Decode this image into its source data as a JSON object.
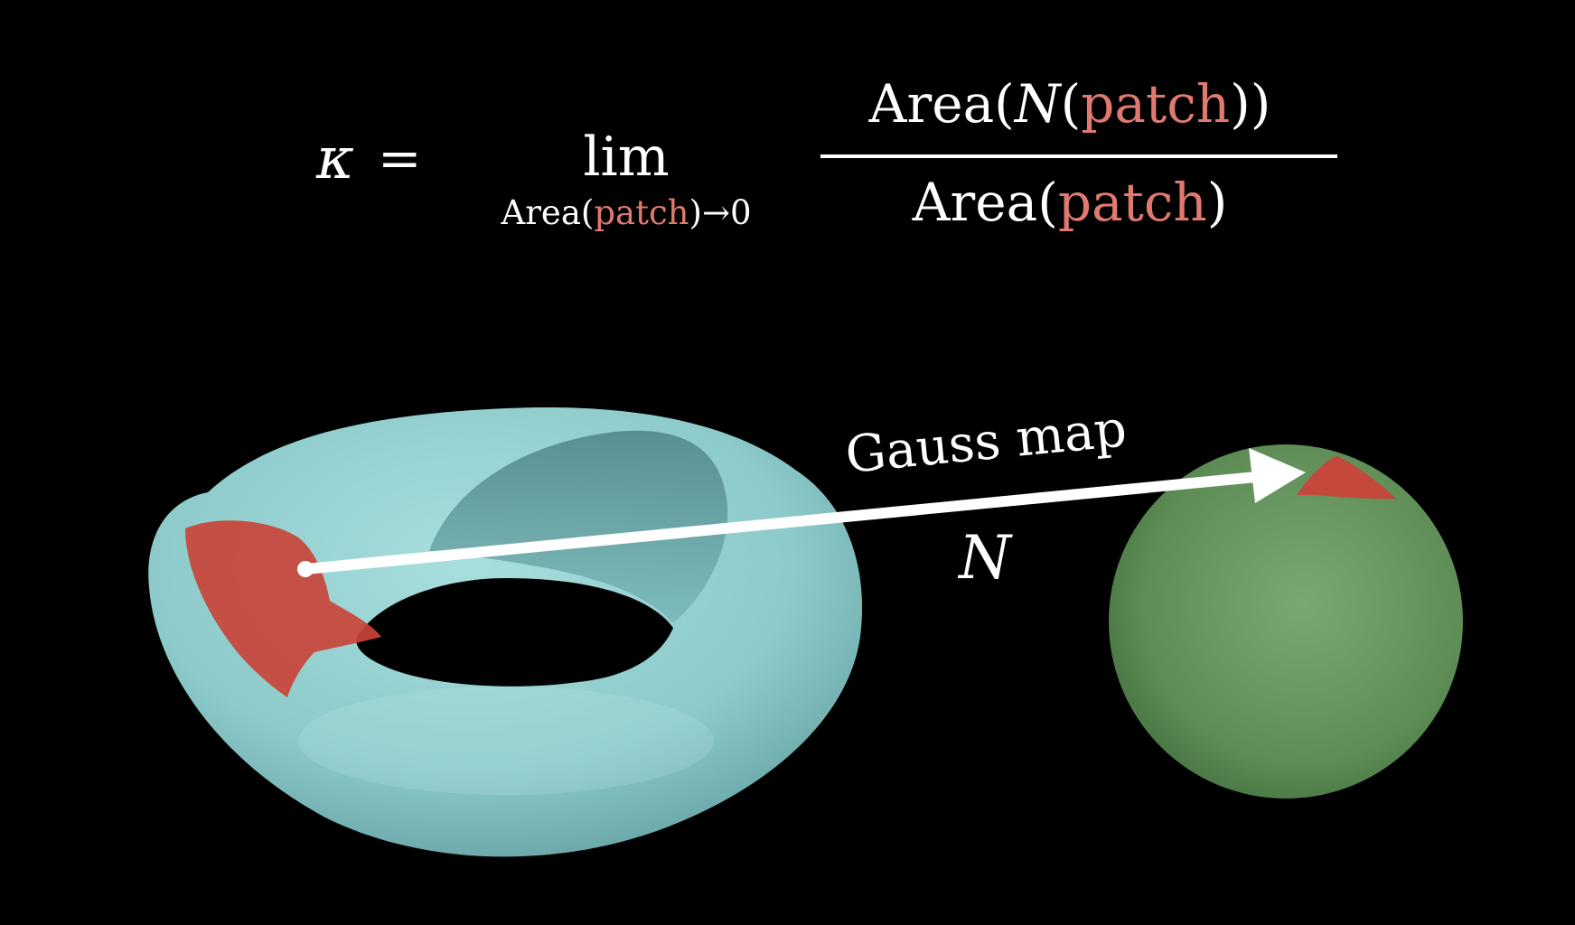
{
  "formula": {
    "lhs_symbol": "κ",
    "equals": "=",
    "lim": "lim",
    "subscript": {
      "area_word": "Area",
      "open_paren": "(",
      "patch_word": "patch",
      "close_paren": ")",
      "arrow_to": "→0"
    },
    "numerator": {
      "area_word": "Area",
      "open_paren": "(",
      "N_symbol": "N",
      "inner_open_paren": "(",
      "patch_word": "patch",
      "closing_parens": "))"
    },
    "denominator": {
      "area_word": "Area",
      "open_paren": "(",
      "patch_word": "patch",
      "close_paren": ")"
    }
  },
  "arrow_label": "Gauss map",
  "map_symbol": "N",
  "colors": {
    "background": "#000000",
    "text": "#ffffff",
    "patch_text": "#e07a70",
    "patch_fill": "#c9443a",
    "torus": "#8fd0d0",
    "sphere": "#6b9a62",
    "arrow": "#ffffff"
  },
  "icons": {
    "torus": "torus-surface-shape",
    "sphere": "sphere-surface-shape",
    "arrow": "gauss-map-arrow"
  }
}
